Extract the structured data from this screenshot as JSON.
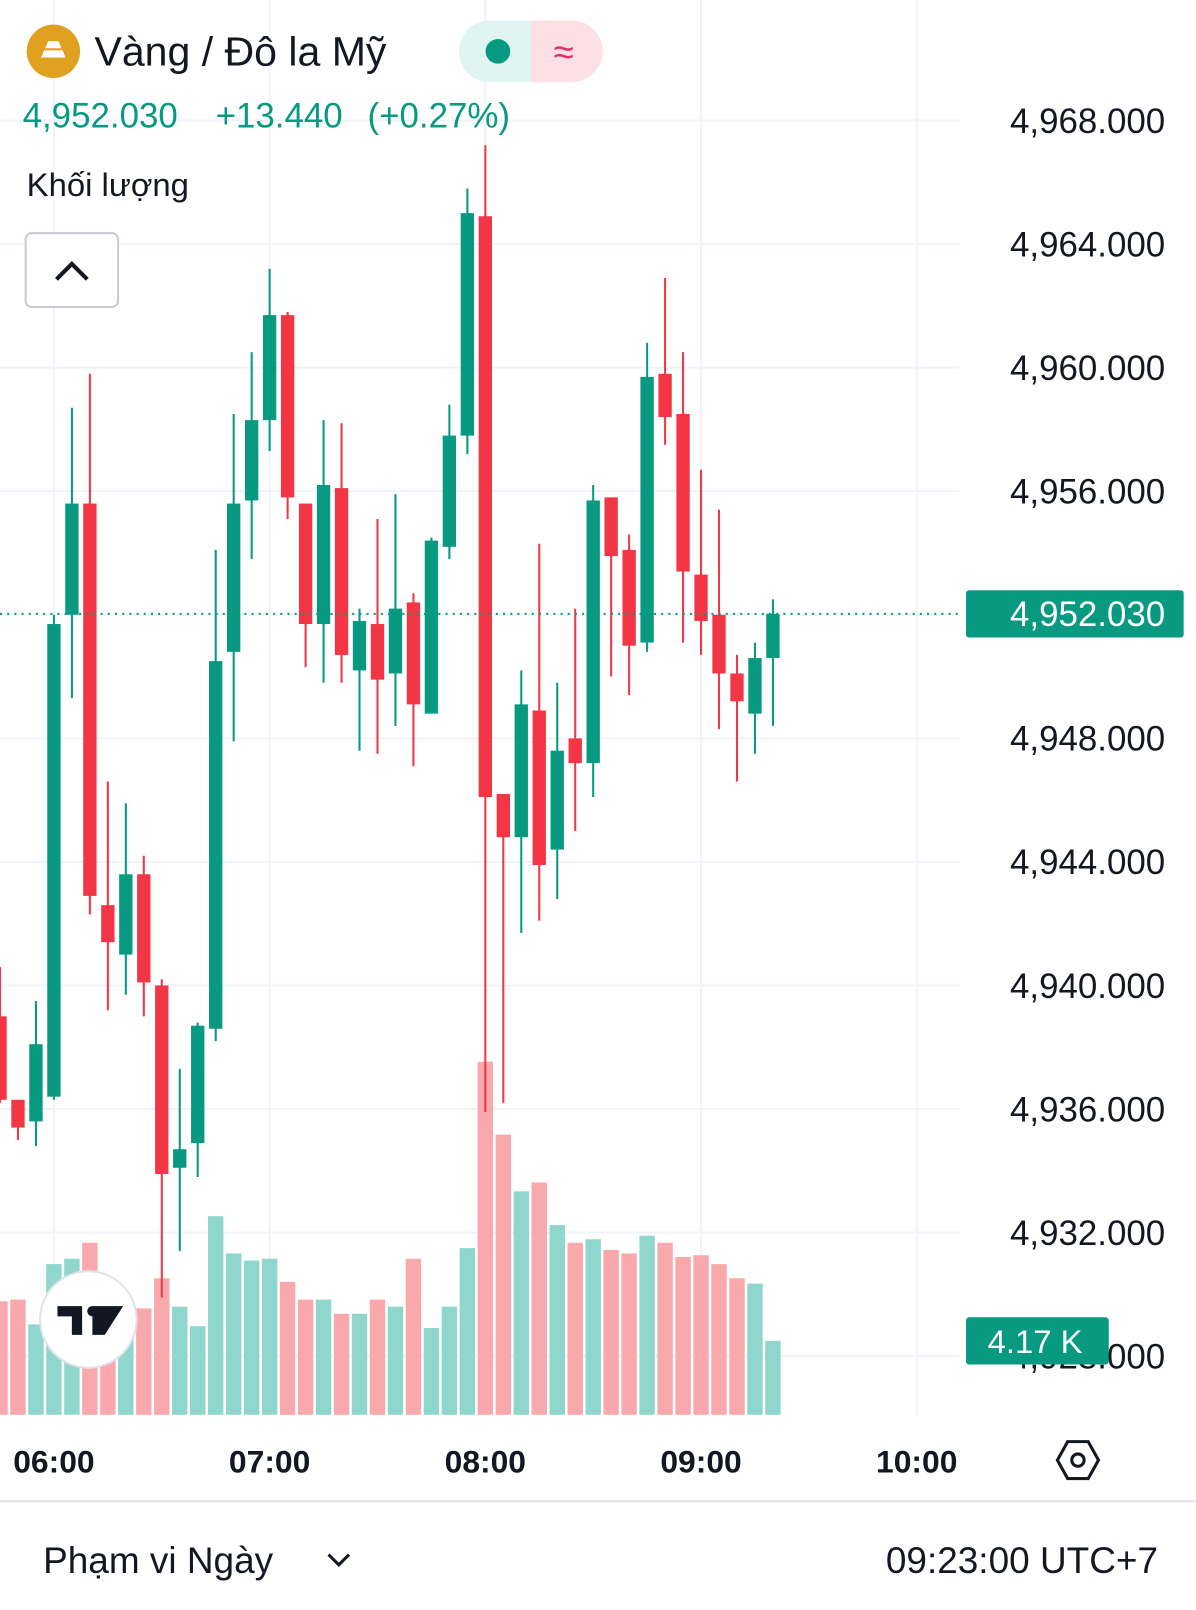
{
  "header": {
    "title": "Vàng / Đô la Mỹ",
    "change": "+13.440",
    "change_pct": "(+0.27%)"
  },
  "footer": {
    "range": "Phạm vi Ngày",
    "time": "09:23:00 UTC+7"
  },
  "chart_data": {
    "type": "candlestick",
    "x": [
      "05:45",
      "05:50",
      "05:55",
      "06:00",
      "06:05",
      "06:10",
      "06:15",
      "06:20",
      "06:25",
      "06:30",
      "06:35",
      "06:40",
      "06:45",
      "06:50",
      "06:55",
      "07:00",
      "07:05",
      "07:10",
      "07:15",
      "07:20",
      "07:25",
      "07:30",
      "07:35",
      "07:40",
      "07:45",
      "07:50",
      "07:55",
      "08:00",
      "08:05",
      "08:10",
      "08:15",
      "08:20",
      "08:25",
      "08:30",
      "08:35",
      "08:40",
      "08:45",
      "08:50",
      "08:55",
      "09:00",
      "09:05",
      "09:10",
      "09:15",
      "09:20"
    ],
    "open": [
      4939.0,
      4936.3,
      4935.6,
      4936.4,
      4952.0,
      4955.6,
      4942.6,
      4941.0,
      4943.6,
      4940.0,
      4934.1,
      4934.9,
      4938.6,
      4950.8,
      4955.7,
      4958.3,
      4961.7,
      4955.6,
      4951.7,
      4956.1,
      4950.2,
      4951.7,
      4950.1,
      4952.4,
      4948.8,
      4954.2,
      4957.8,
      4964.9,
      4946.2,
      4944.8,
      4948.9,
      4944.4,
      4948.0,
      4947.2,
      4955.8,
      4954.1,
      4951.1,
      4959.8,
      4958.5,
      4953.3,
      4952.0,
      4950.1,
      4948.8,
      4950.6
    ],
    "high": [
      4940.6,
      4936.3,
      4939.5,
      4952.0,
      4958.7,
      4959.8,
      4946.6,
      4945.9,
      4944.2,
      4940.2,
      4937.3,
      4938.8,
      4954.1,
      4958.5,
      4960.5,
      4963.2,
      4961.8,
      4955.6,
      4958.3,
      4958.2,
      4952.2,
      4955.1,
      4955.9,
      4952.7,
      4954.5,
      4958.8,
      4965.8,
      4967.2,
      4946.2,
      4950.2,
      4954.3,
      4949.8,
      4952.2,
      4956.2,
      4955.8,
      4954.6,
      4960.8,
      4962.9,
      4960.5,
      4956.7,
      4955.4,
      4950.7,
      4951.1,
      4952.5
    ],
    "low": [
      4936.2,
      4935.0,
      4934.8,
      4936.3,
      4949.3,
      4942.3,
      4939.2,
      4939.7,
      4939.0,
      4929.9,
      4931.4,
      4933.8,
      4938.2,
      4947.9,
      4953.8,
      4957.3,
      4955.1,
      4950.3,
      4949.8,
      4949.8,
      4947.6,
      4947.5,
      4948.4,
      4947.1,
      4948.8,
      4953.8,
      4957.2,
      4935.9,
      4936.2,
      4941.7,
      4942.1,
      4942.8,
      4945.0,
      4946.1,
      4950.0,
      4949.4,
      4950.8,
      4957.5,
      4951.1,
      4950.7,
      4948.3,
      4946.6,
      4947.5,
      4948.4
    ],
    "close": [
      4936.3,
      4935.4,
      4938.1,
      4951.7,
      4955.6,
      4942.9,
      4941.4,
      4943.6,
      4940.1,
      4933.9,
      4934.7,
      4938.7,
      4950.5,
      4955.6,
      4958.3,
      4961.7,
      4955.8,
      4951.7,
      4956.2,
      4950.7,
      4951.8,
      4949.9,
      4952.2,
      4949.1,
      4954.4,
      4957.8,
      4965.0,
      4946.1,
      4944.8,
      4949.1,
      4943.9,
      4947.6,
      4947.2,
      4955.7,
      4953.9,
      4951.0,
      4959.7,
      4958.4,
      4953.4,
      4951.8,
      4950.1,
      4949.2,
      4950.6,
      4952.03
    ],
    "last_label": "4,952.030",
    "up_color": "#089981",
    "down_color": "#f23645",
    "volume": {
      "name": "Khối lượng",
      "values": [
        6.4,
        6.5,
        5.1,
        8.5,
        8.8,
        9.7,
        6.8,
        6.0,
        6.0,
        7.7,
        6.1,
        5.0,
        11.2,
        9.1,
        8.7,
        8.8,
        7.5,
        6.5,
        6.5,
        5.7,
        5.7,
        6.5,
        6.1,
        8.8,
        4.9,
        6.1,
        9.4,
        19.9,
        15.8,
        12.6,
        13.1,
        10.7,
        9.7,
        9.9,
        9.3,
        9.1,
        10.1,
        9.7,
        8.9,
        9.0,
        8.5,
        7.7,
        7.4,
        4.17
      ],
      "last_label": "4.17 K",
      "up_color": "#8fd6cc",
      "down_color": "#f9a8ac",
      "vlim": [
        0,
        25
      ]
    },
    "xlim": [
      "05:45",
      "10:12"
    ],
    "xticks": [
      "06:00",
      "07:00",
      "08:00",
      "09:00",
      "10:00"
    ],
    "ylim": [
      4926.1,
      4971.9
    ],
    "yticks": [
      {
        "value": 4928,
        "label": "4,928.000"
      },
      {
        "value": 4932,
        "label": "4,932.000"
      },
      {
        "value": 4936,
        "label": "4,936.000"
      },
      {
        "value": 4940,
        "label": "4,940.000"
      },
      {
        "value": 4944,
        "label": "4,944.000"
      },
      {
        "value": 4948,
        "label": "4,948.000"
      },
      {
        "value": 4952,
        "label": "4,952.000"
      },
      {
        "value": 4956,
        "label": "4,956.000"
      },
      {
        "value": 4960,
        "label": "4,960.000"
      },
      {
        "value": 4964,
        "label": "4,964.000"
      },
      {
        "value": 4968,
        "label": "4,968.000"
      }
    ],
    "grid": true
  }
}
